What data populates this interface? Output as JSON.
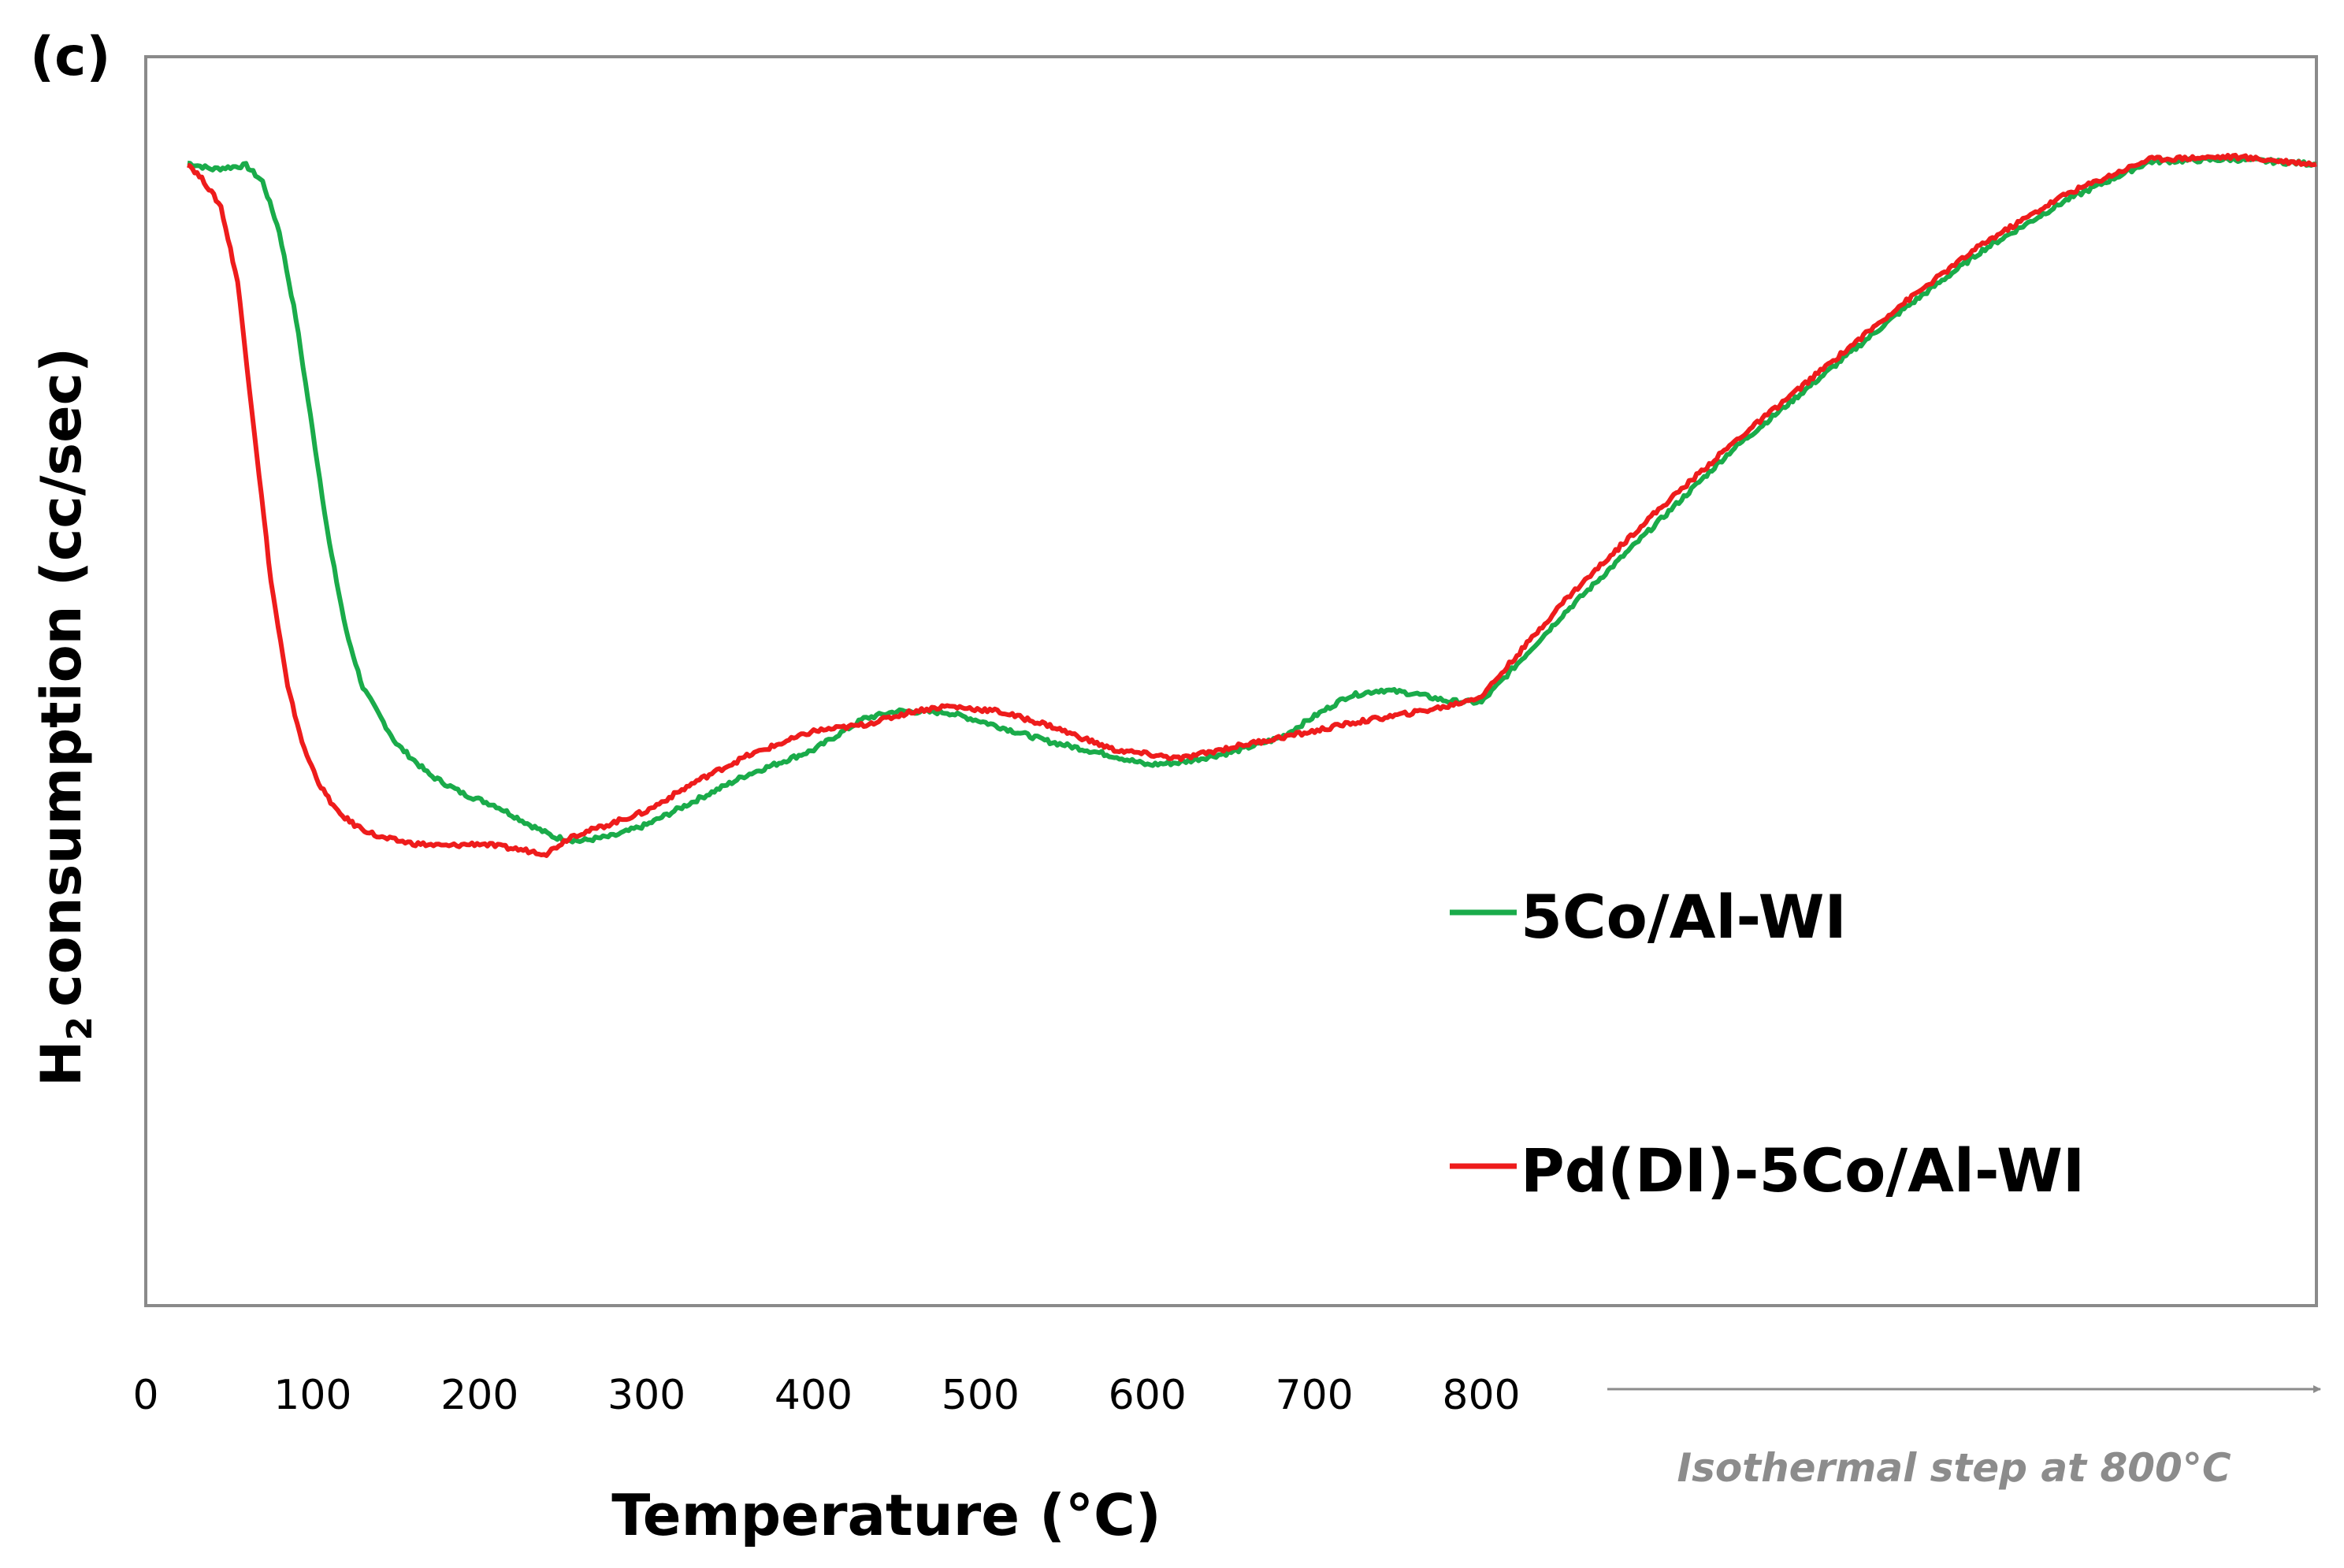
{
  "panel_label": "(c)",
  "chart_data": {
    "type": "line",
    "title": "",
    "xlabel": "Temperature (°C)",
    "ylabel": "consumption (cc/sec)",
    "ylabel_prefix": "H",
    "ylabel_subscript": "2",
    "xlim": [
      0,
      1300
    ],
    "ylim": [
      0,
      100
    ],
    "y_axis_ticks_shown": false,
    "grid": false,
    "legend_position": "lower-right",
    "x_ticks": [
      {
        "value": 0,
        "label": "0"
      },
      {
        "value": 100,
        "label": "100"
      },
      {
        "value": 200,
        "label": "200"
      },
      {
        "value": 300,
        "label": "300"
      },
      {
        "value": 400,
        "label": "400"
      },
      {
        "value": 500,
        "label": "500"
      },
      {
        "value": 600,
        "label": "600"
      },
      {
        "value": 700,
        "label": "700"
      },
      {
        "value": 800,
        "label": "800"
      }
    ],
    "annotation": {
      "text": "Isothermal step at 800°C",
      "from_x": 880,
      "to_x": 1300
    },
    "series": [
      {
        "name": "5Co/Al-WI",
        "color": "#1aab4a",
        "x": [
          25,
          40,
          60,
          70,
          80,
          90,
          100,
          110,
          120,
          130,
          150,
          170,
          190,
          210,
          230,
          245,
          260,
          280,
          300,
          330,
          360,
          400,
          430,
          450,
          480,
          500,
          540,
          580,
          600,
          620,
          650,
          680,
          700,
          720,
          740,
          760,
          780,
          800,
          850,
          900,
          950,
          1000,
          1050,
          1100,
          1150,
          1200,
          1250,
          1300
        ],
        "y": [
          91.5,
          91.0,
          91.3,
          90.0,
          86.0,
          79.0,
          70.0,
          61.0,
          54.0,
          49.5,
          45.0,
          42.5,
          41.0,
          40.0,
          38.5,
          37.5,
          37.2,
          37.6,
          38.5,
          40.5,
          42.5,
          44.5,
          47.0,
          47.6,
          47.5,
          46.8,
          45.2,
          44.0,
          43.3,
          43.5,
          44.3,
          45.5,
          47.2,
          48.8,
          49.3,
          49.0,
          48.4,
          48.3,
          55.5,
          62.0,
          68.5,
          74.0,
          79.5,
          84.5,
          88.5,
          91.6,
          91.8,
          91.4
        ]
      },
      {
        "name": "Pd(DI)-5Co/Al-WI",
        "color": "#ee1c1c",
        "x": [
          25,
          35,
          45,
          55,
          65,
          75,
          85,
          95,
          105,
          115,
          125,
          140,
          160,
          180,
          200,
          220,
          240,
          255,
          270,
          300,
          330,
          360,
          400,
          430,
          460,
          480,
          510,
          540,
          580,
          620,
          650,
          680,
          700,
          720,
          760,
          780,
          800,
          850,
          900,
          950,
          1000,
          1050,
          1100,
          1150,
          1200,
          1250,
          1300
        ],
        "y": [
          91.5,
          90.0,
          88.0,
          82.0,
          70.0,
          58.0,
          49.5,
          44.5,
          41.5,
          39.5,
          38.5,
          37.5,
          37.0,
          36.8,
          37.0,
          36.6,
          36.2,
          37.6,
          38.2,
          39.6,
          42.0,
          44.0,
          46.0,
          46.5,
          47.6,
          48.0,
          47.6,
          46.5,
          44.5,
          43.8,
          44.7,
          45.5,
          46.0,
          46.6,
          47.5,
          48.0,
          48.8,
          56.5,
          63.0,
          69.0,
          74.5,
          80.0,
          85.0,
          89.0,
          91.8,
          92.0,
          91.4
        ]
      }
    ]
  }
}
